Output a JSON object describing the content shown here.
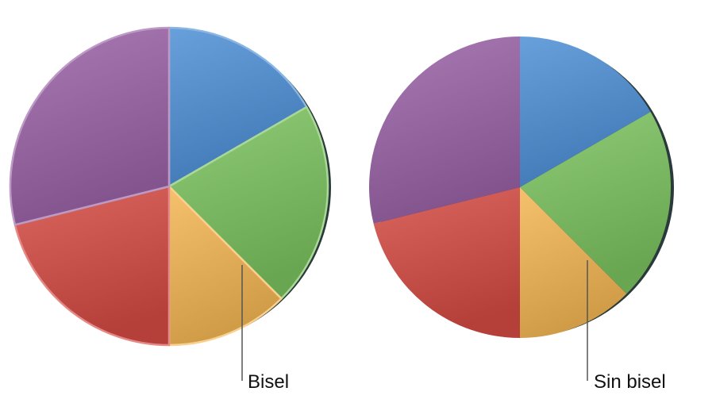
{
  "slices": [
    {
      "name": "blue",
      "color": "#4d8fd6"
    },
    {
      "name": "green",
      "color": "#7cc35f"
    },
    {
      "name": "yellow",
      "color": "#f4b653"
    },
    {
      "name": "red",
      "color": "#d54a43"
    },
    {
      "name": "purple",
      "color": "#9a62a6"
    }
  ],
  "left_pie": {
    "label": "Bisel",
    "bevel": true
  },
  "right_pie": {
    "label": "Sin bisel",
    "bevel": false
  }
}
